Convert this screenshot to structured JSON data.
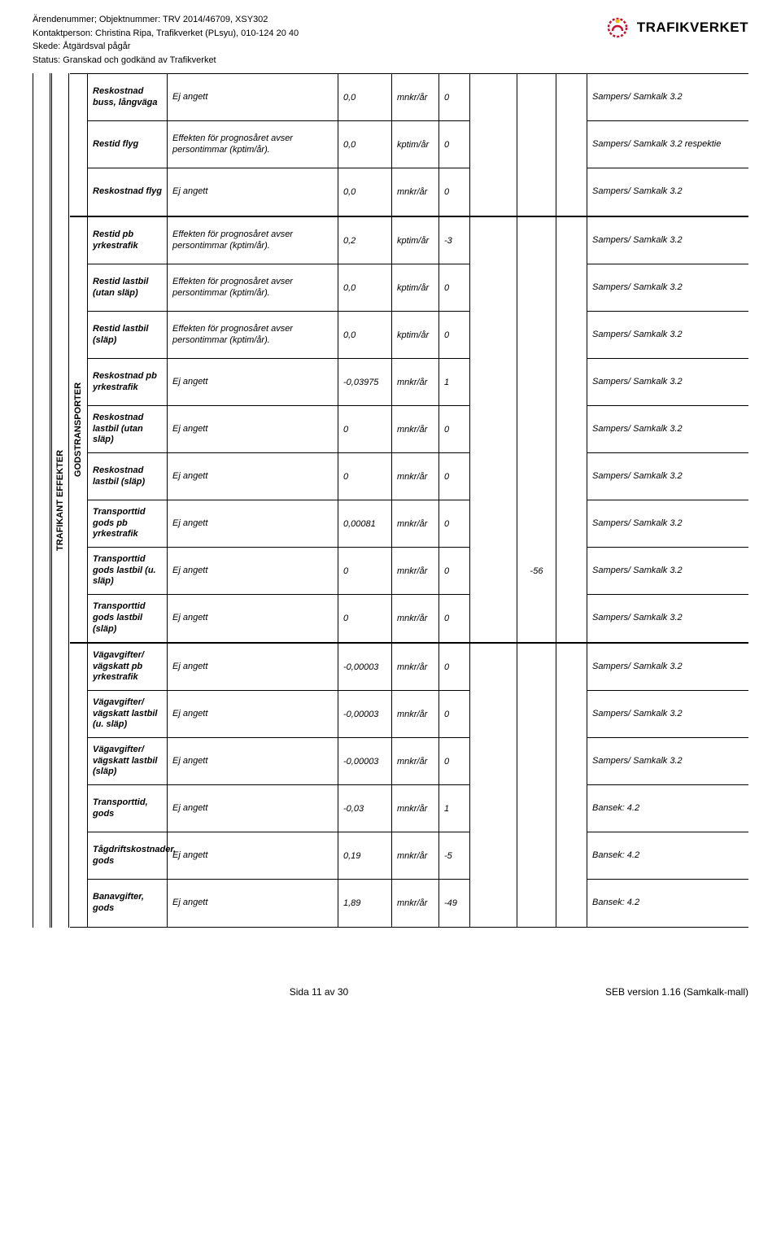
{
  "header": {
    "line1": "Ärendenummer; Objektnummer: TRV 2014/46709, XSY302",
    "line2": "Kontaktperson: Christina Ripa, Trafikverket (PLsyu), 010-124 20 40",
    "line3": "Skede: Åtgärdsval pågår",
    "line4": "Status: Granskad och godkänd av Trafikverket"
  },
  "logo": {
    "text": "TRAFIKVERKET",
    "color": "#c8102e"
  },
  "sideLabel": "TRAFIKANT EFFEKTER",
  "src": "Sampers/ Samkalk 3.2",
  "srcRes": "Sampers/ Samkalk 3.2 respektie",
  "srcBan": "Bansek: 4.2",
  "effDesc": "Effekten för prognosåret avser persontimmar (kptim/år).",
  "ej": "Ej angett",
  "group1": {
    "rows": [
      {
        "label": "Reskostnad buss, långväga",
        "desc_key": "ej",
        "val": "0,0",
        "unit": "mnkr/år",
        "num": "0",
        "src_key": "src"
      },
      {
        "label": "Restid flyg",
        "desc_key": "effDesc",
        "val": "0,0",
        "unit": "kptim/år",
        "num": "0",
        "src_key": "srcRes",
        "clipped": true
      },
      {
        "label": "Reskostnad flyg",
        "desc_key": "ej",
        "val": "0,0",
        "unit": "mnkr/år",
        "num": "0",
        "src_key": "src"
      }
    ]
  },
  "group2": {
    "label": "GODSTRANSPORTER",
    "extra": "-56",
    "rows": [
      {
        "label": "Restid pb yrkestrafik",
        "desc_key": "effDesc",
        "val": "0,2",
        "unit": "kptim/år",
        "num": "-3",
        "src_key": "src"
      },
      {
        "label": "Restid lastbil (utan släp)",
        "desc_key": "effDesc",
        "val": "0,0",
        "unit": "kptim/år",
        "num": "0",
        "src_key": "src"
      },
      {
        "label": "Restid lastbil (släp)",
        "desc_key": "effDesc",
        "val": "0,0",
        "unit": "kptim/år",
        "num": "0",
        "src_key": "src"
      },
      {
        "label": "Reskostnad pb yrkestrafik",
        "desc_key": "ej",
        "val": "-0,03975",
        "unit": "mnkr/år",
        "num": "1",
        "src_key": "src"
      },
      {
        "label": "Reskostnad lastbil (utan släp)",
        "desc_key": "ej",
        "val": "0",
        "unit": "mnkr/år",
        "num": "0",
        "src_key": "src"
      },
      {
        "label": "Reskostnad lastbil (släp)",
        "desc_key": "ej",
        "val": "0",
        "unit": "mnkr/år",
        "num": "0",
        "src_key": "src"
      },
      {
        "label": "Transporttid gods pb yrkestrafik",
        "desc_key": "ej",
        "val": "0,00081",
        "unit": "mnkr/år",
        "num": "0",
        "src_key": "src"
      },
      {
        "label": "Transporttid gods lastbil (u. släp)",
        "desc_key": "ej",
        "val": "0",
        "unit": "mnkr/år",
        "num": "0",
        "src_key": "src"
      },
      {
        "label": "Transporttid gods lastbil (släp)",
        "desc_key": "ej",
        "val": "0",
        "unit": "mnkr/år",
        "num": "0",
        "src_key": "src"
      }
    ]
  },
  "group3": {
    "rows": [
      {
        "label": "Vägavgifter/ vägskatt pb yrkestrafik",
        "desc_key": "ej",
        "val": "-0,00003",
        "unit": "mnkr/år",
        "num": "0",
        "src_key": "src"
      },
      {
        "label": "Vägavgifter/ vägskatt lastbil (u. släp)",
        "desc_key": "ej",
        "val": "-0,00003",
        "unit": "mnkr/år",
        "num": "0",
        "src_key": "src"
      },
      {
        "label": "Vägavgifter/ vägskatt lastbil (släp)",
        "desc_key": "ej",
        "val": "-0,00003",
        "unit": "mnkr/år",
        "num": "0",
        "src_key": "src"
      },
      {
        "label": "Transporttid, gods",
        "desc_key": "ej",
        "val": "-0,03",
        "unit": "mnkr/år",
        "num": "1",
        "src_key": "srcBan"
      },
      {
        "label": "Tågdriftskostnader, gods",
        "desc_key": "ej",
        "val": "0,19",
        "unit": "mnkr/år",
        "num": "-5",
        "src_key": "srcBan"
      },
      {
        "label": "Banavgifter, gods",
        "desc_key": "ej",
        "val": "1,89",
        "unit": "mnkr/år",
        "num": "-49",
        "src_key": "srcBan"
      }
    ]
  },
  "footer": {
    "center": "Sida 11 av 30",
    "right": "SEB version 1.16 (Samkalk-mall)"
  }
}
